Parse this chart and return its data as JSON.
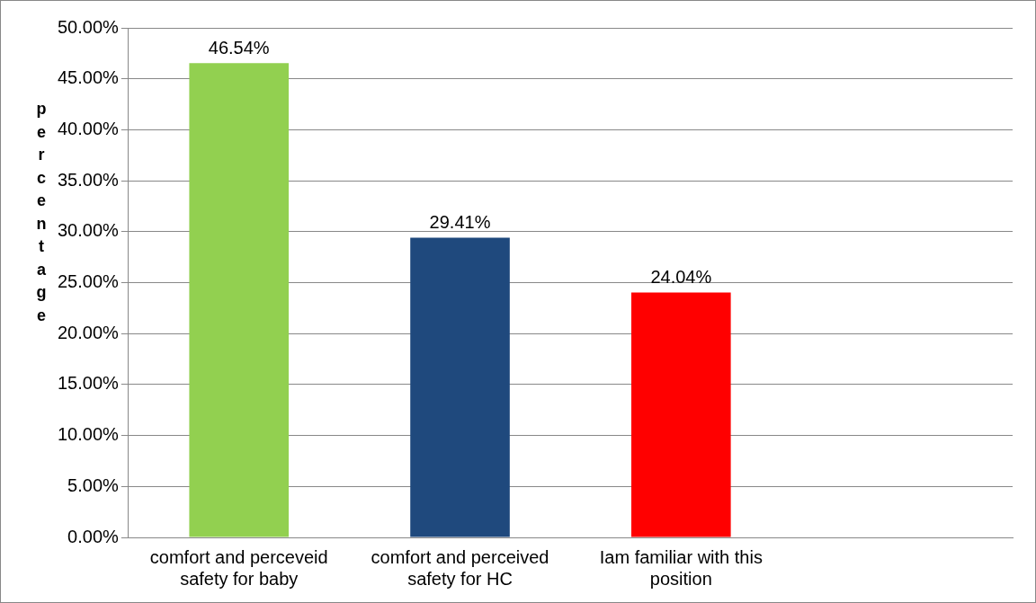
{
  "chart_data": {
    "type": "bar",
    "ylabel": "percentage",
    "categories": [
      "comfort and perceveid safety for baby",
      "comfort and perceived safety for HC",
      "Iam familiar with this position",
      null
    ],
    "values": [
      46.54,
      29.41,
      24.04,
      null
    ],
    "colors": [
      "#92d050",
      "#1f497d",
      "#ff0000",
      "#ff0000"
    ],
    "value_labels": [
      "46.54%",
      "29.41%",
      "24.04%",
      null
    ],
    "ylim": [
      0,
      50
    ],
    "yticks": [
      {
        "value": 0,
        "label": "0.00%"
      },
      {
        "value": 5,
        "label": "5.00%"
      },
      {
        "value": 10,
        "label": "10.00%"
      },
      {
        "value": 15,
        "label": "15.00%"
      },
      {
        "value": 20,
        "label": "20.00%"
      },
      {
        "value": 25,
        "label": "25.00%"
      },
      {
        "value": 30,
        "label": "30.00%"
      },
      {
        "value": 35,
        "label": "35.00%"
      },
      {
        "value": 40,
        "label": "40.00%"
      },
      {
        "value": 45,
        "label": "45.00%"
      },
      {
        "value": 50,
        "label": "50.00%"
      }
    ],
    "grid": "y",
    "legend": false
  }
}
